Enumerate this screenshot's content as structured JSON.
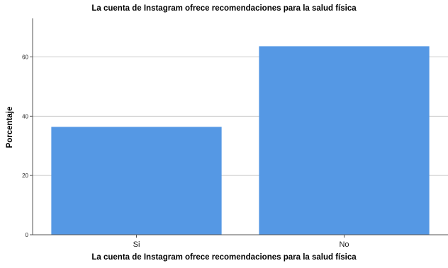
{
  "chart_data": {
    "type": "bar",
    "title": "La cuenta de Instagram ofrece recomendaciones para la salud física",
    "xlabel": "La cuenta de Instagram ofrece recomendaciones para la salud física",
    "ylabel": "Porcentaje",
    "categories": [
      "Si",
      "No"
    ],
    "values": [
      36.4,
      63.6
    ],
    "ylim": [
      0,
      73
    ],
    "yticks": [
      0,
      20,
      40,
      60
    ],
    "grid": true,
    "bar_color": "#5598e4",
    "gridline_color": "#c8c8c8",
    "axis_color": "#555555"
  }
}
